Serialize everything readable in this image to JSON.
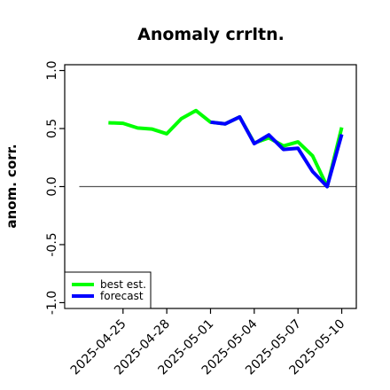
{
  "chart_data": {
    "type": "line",
    "title": "Anomaly crrltn.",
    "xlabel": "",
    "ylabel": "anom. corr.",
    "ylim": [
      -1.05,
      1.05
    ],
    "yticks": [
      -1.0,
      -0.5,
      0.0,
      0.5,
      1.0
    ],
    "ytick_labels": [
      "-1.0",
      "-0.5",
      "0.0",
      "0.5",
      "1.0"
    ],
    "xlim": [
      "2025-04-21",
      "2025-05-11"
    ],
    "xticks": [
      "2025-04-25",
      "2025-04-28",
      "2025-05-01",
      "2025-05-04",
      "2025-05-07",
      "2025-05-10"
    ],
    "xtick_colors": [
      "#000000",
      "#000000",
      "#228B22",
      "#000000",
      "#000000",
      "#000000"
    ],
    "reference_line": {
      "y": 0.0,
      "x_start": "2025-04-22",
      "x_end": "2025-05-11",
      "color": "#555555"
    },
    "x": [
      "2025-04-24",
      "2025-04-25",
      "2025-04-26",
      "2025-04-27",
      "2025-04-28",
      "2025-04-29",
      "2025-04-30",
      "2025-05-01",
      "2025-05-02",
      "2025-05-03",
      "2025-05-04",
      "2025-05-05",
      "2025-05-06",
      "2025-05-07",
      "2025-05-08",
      "2025-05-09",
      "2025-05-10"
    ],
    "series": [
      {
        "name": "best est.",
        "color": "#00ff00",
        "values": [
          0.55,
          0.545,
          0.505,
          0.495,
          0.455,
          0.585,
          0.655,
          0.555,
          0.54,
          0.6,
          0.375,
          0.42,
          0.35,
          0.385,
          0.265,
          0.0,
          0.51
        ]
      },
      {
        "name": "forecast",
        "color": "#0000ff",
        "values": [
          null,
          null,
          null,
          null,
          null,
          null,
          null,
          0.555,
          0.54,
          0.6,
          0.37,
          0.445,
          0.32,
          0.33,
          0.13,
          0.0,
          0.45
        ]
      }
    ],
    "legend": {
      "position": "bottom-left"
    },
    "grid": false
  }
}
